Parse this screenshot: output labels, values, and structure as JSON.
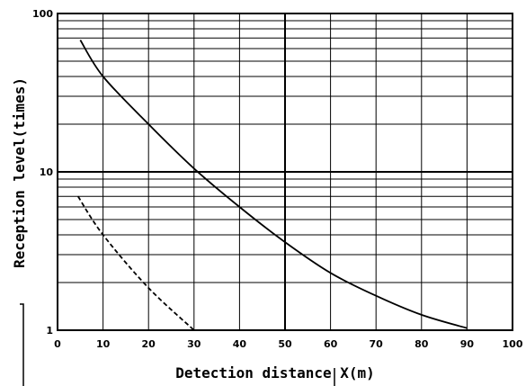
{
  "chart_data": {
    "type": "line",
    "title": "",
    "xlabel": "Detection distance X(m)",
    "ylabel": "Reception level(times)",
    "xlim": [
      0,
      100
    ],
    "ylim": [
      1,
      100
    ],
    "yscale": "log",
    "grid": true,
    "x_ticks": [
      "0",
      "10",
      "20",
      "30",
      "40",
      "50",
      "60",
      "70",
      "80",
      "90",
      "100"
    ],
    "y_ticks": [
      "1",
      "10",
      "100"
    ],
    "series": [
      {
        "style": "solid",
        "color": "#000000",
        "points": [
          [
            5,
            68
          ],
          [
            10,
            40
          ],
          [
            20,
            20
          ],
          [
            30,
            10.5
          ],
          [
            40,
            6
          ],
          [
            50,
            3.6
          ],
          [
            60,
            2.3
          ],
          [
            70,
            1.65
          ],
          [
            80,
            1.25
          ],
          [
            90,
            1.03
          ]
        ]
      },
      {
        "style": "dashed",
        "color": "#000000",
        "points": [
          [
            4.5,
            7
          ],
          [
            10,
            4
          ],
          [
            20,
            1.85
          ],
          [
            30,
            1.0
          ]
        ]
      }
    ]
  }
}
